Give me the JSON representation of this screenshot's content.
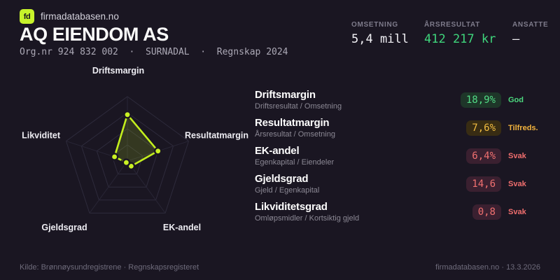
{
  "brand": {
    "logo_text": "fd",
    "site": "firmadatabasen.no"
  },
  "header": {
    "company_name": "AQ EIENDOM AS",
    "subtitle": "Org.nr 924 832 002  ·  SURNADAL  ·  Regnskap 2024",
    "stats": [
      {
        "label": "OMSETNING",
        "value": "5,4 mill",
        "color": "white"
      },
      {
        "label": "ÅRSRESULTAT",
        "value": "412 217 kr",
        "color": "green"
      },
      {
        "label": "ANSATTE",
        "value": "–",
        "color": "white"
      }
    ]
  },
  "chart_data": {
    "type": "radar",
    "axes": [
      "Driftsmargin",
      "Resultatmargin",
      "EK-andel",
      "Gjeldsgrad",
      "Likviditet"
    ],
    "values_normalized": [
      0.72,
      0.5,
      0.1,
      0.03,
      0.21
    ],
    "rings": 4,
    "accent_color": "#c3ef1d",
    "fill_color": "rgba(195,239,29,0.16)",
    "grid_color": "#2e2b3c"
  },
  "metrics": [
    {
      "name": "Driftsmargin",
      "formula": "Driftsresultat / Omsetning",
      "value": "18,9%",
      "rating": "God",
      "status": "good"
    },
    {
      "name": "Resultatmargin",
      "formula": "Årsresultat / Omsetning",
      "value": "7,6%",
      "rating": "Tilfreds.",
      "status": "ok"
    },
    {
      "name": "EK-andel",
      "formula": "Egenkapital / Eiendeler",
      "value": "6,4%",
      "rating": "Svak",
      "status": "weak"
    },
    {
      "name": "Gjeldsgrad",
      "formula": "Gjeld / Egenkapital",
      "value": "14,6",
      "rating": "Svak",
      "status": "weak"
    },
    {
      "name": "Likviditetsgrad",
      "formula": "Omløpsmidler / Kortsiktig gjeld",
      "value": "0,8",
      "rating": "Svak",
      "status": "weak"
    }
  ],
  "footer": {
    "source": "Kilde: Brønnøysundregistrene · Regnskapsregisteret",
    "right": "firmadatabasen.no · 13.3.2026"
  },
  "colors": {
    "background": "#1a1622",
    "accent": "#c7f22b",
    "positive": "#3fd67c",
    "warning": "#f2b33d",
    "negative": "#f06e6e"
  }
}
